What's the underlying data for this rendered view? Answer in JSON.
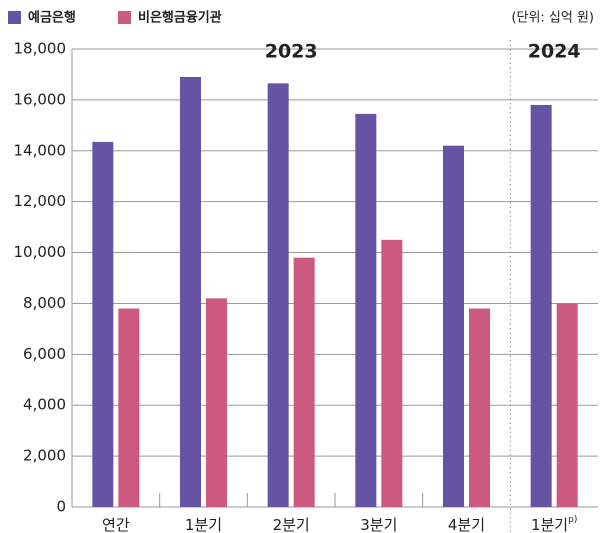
{
  "chart_data": {
    "type": "bar",
    "unit_label": "(단위: 십억 원)",
    "annotations": [
      "2023",
      "2024"
    ],
    "categories": [
      "연간",
      "1분기",
      "2분기",
      "3분기",
      "4분기",
      "1분기"
    ],
    "category_superscripts": [
      null,
      null,
      null,
      null,
      null,
      "p)"
    ],
    "series": [
      {
        "name": "예금은행",
        "color": "#6553a3",
        "values": [
          14350,
          16900,
          16650,
          15450,
          14200,
          15800
        ]
      },
      {
        "name": "비은행금융기관",
        "color": "#cc5a80",
        "values": [
          7800,
          8200,
          9800,
          10500,
          7800,
          8000
        ]
      }
    ],
    "ylim": [
      0,
      18000
    ],
    "yticks": [
      0,
      {
        "value": 2000,
        "label": "2,000"
      },
      {
        "value": 4000,
        "label": "4,000"
      },
      {
        "value": 6000,
        "label": "6,000"
      },
      {
        "value": 8000,
        "label": "8,000"
      },
      {
        "value": 10000,
        "label": "10,000"
      },
      {
        "value": 12000,
        "label": "12,000"
      },
      {
        "value": 14000,
        "label": "14,000"
      },
      {
        "value": 16000,
        "label": "16,000"
      },
      {
        "value": 18000,
        "label": "18,000"
      }
    ],
    "grid": true
  }
}
